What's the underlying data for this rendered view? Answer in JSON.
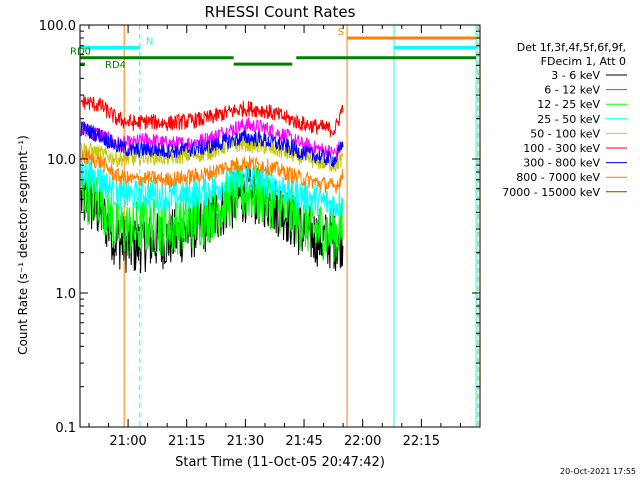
{
  "chart_data": {
    "type": "line",
    "title": "RHESSI Count Rates",
    "xlabel": "Start Time (11-Oct-05 20:47:42)",
    "ylabel": "Count Rate (s⁻¹ detector segment⁻¹)",
    "y_scale": "log",
    "ylim": [
      0.1,
      100.0
    ],
    "y_ticks": [
      {
        "value": 0.1,
        "label": "0.1"
      },
      {
        "value": 1.0,
        "label": "1.0"
      },
      {
        "value": 10.0,
        "label": "10.0"
      },
      {
        "value": 100.0,
        "label": "100.0"
      }
    ],
    "xlim": [
      "20:47:42",
      "22:30:00"
    ],
    "x_ticks": [
      "21:00",
      "21:15",
      "21:30",
      "21:45",
      "22:00",
      "22:15"
    ],
    "legend_header": [
      "Det 1f,3f,4f,5f,6f,9f,",
      "FDecim 1, Att 0"
    ],
    "legend_position": "right",
    "series": [
      {
        "name": "3 - 6 keV",
        "color": "#000000",
        "x": [
          "20:48",
          "20:53",
          "20:57",
          "21:01",
          "21:05",
          "21:10",
          "21:15",
          "21:20",
          "21:25",
          "21:30",
          "21:35",
          "21:40",
          "21:44",
          "21:48",
          "21:53",
          "21:55"
        ],
        "values": [
          5.0,
          4.0,
          2.5,
          2.2,
          2.4,
          2.5,
          2.8,
          3.3,
          4.5,
          5.5,
          5.0,
          4.0,
          3.0,
          2.6,
          2.4,
          2.6
        ]
      },
      {
        "name": "6 - 12 keV",
        "color": "#ff00ff",
        "x": [
          "20:48",
          "20:53",
          "20:57",
          "21:01",
          "21:05",
          "21:10",
          "21:15",
          "21:20",
          "21:25",
          "21:30",
          "21:35",
          "21:40",
          "21:44",
          "21:48",
          "21:53",
          "21:55"
        ],
        "values": [
          17,
          15,
          13,
          13,
          14,
          13,
          13,
          14,
          16,
          18,
          17,
          15,
          13,
          12,
          11,
          13
        ]
      },
      {
        "name": "12 - 25 keV",
        "color": "#00ff00",
        "x": [
          "20:48",
          "20:53",
          "20:57",
          "21:01",
          "21:05",
          "21:10",
          "21:15",
          "21:20",
          "21:25",
          "21:30",
          "21:35",
          "21:40",
          "21:44",
          "21:48",
          "21:53",
          "21:55"
        ],
        "values": [
          5.5,
          5.0,
          3.0,
          3.0,
          3.2,
          3.1,
          3.3,
          3.8,
          4.8,
          5.8,
          5.2,
          4.3,
          3.4,
          3.0,
          2.8,
          3.0
        ]
      },
      {
        "name": "25 - 50 keV",
        "color": "#00ffff",
        "x": [
          "20:48",
          "20:53",
          "20:57",
          "21:01",
          "21:05",
          "21:10",
          "21:15",
          "21:20",
          "21:25",
          "21:30",
          "21:35",
          "21:40",
          "21:44",
          "21:48",
          "21:53",
          "21:55"
        ],
        "values": [
          8,
          7,
          5.5,
          5.3,
          5.5,
          5.2,
          5.4,
          5.8,
          6.5,
          7.2,
          6.8,
          6.0,
          5.4,
          5.0,
          4.5,
          5.0
        ]
      },
      {
        "name": "50 - 100 keV",
        "color": "#c8c800",
        "x": [
          "20:48",
          "20:53",
          "20:57",
          "21:01",
          "21:05",
          "21:10",
          "21:15",
          "21:20",
          "21:25",
          "21:30",
          "21:35",
          "21:40",
          "21:44",
          "21:48",
          "21:53",
          "21:55"
        ],
        "values": [
          12,
          11,
          10,
          10,
          10.5,
          10.2,
          10.6,
          11,
          12.5,
          13,
          12.3,
          11.2,
          10.3,
          9.6,
          9.0,
          10
        ]
      },
      {
        "name": "100 - 300 keV",
        "color": "#ff0000",
        "x": [
          "20:48",
          "20:53",
          "20:57",
          "21:01",
          "21:05",
          "21:10",
          "21:15",
          "21:20",
          "21:25",
          "21:30",
          "21:35",
          "21:40",
          "21:44",
          "21:48",
          "21:53",
          "21:55"
        ],
        "values": [
          27,
          25,
          20,
          18.5,
          19,
          18.5,
          19,
          20,
          22,
          24,
          23,
          20.5,
          18.5,
          17.5,
          16.5,
          25
        ]
      },
      {
        "name": "300 - 800 keV",
        "color": "#0000ff",
        "x": [
          "20:48",
          "20:53",
          "20:57",
          "21:01",
          "21:05",
          "21:10",
          "21:15",
          "21:20",
          "21:25",
          "21:30",
          "21:35",
          "21:40",
          "21:44",
          "21:48",
          "21:53",
          "21:55"
        ],
        "values": [
          17,
          15,
          12.5,
          11.5,
          11.8,
          11.5,
          11.8,
          12.2,
          13.5,
          14.5,
          13.8,
          12.6,
          11.3,
          10.6,
          9.8,
          13
        ]
      },
      {
        "name": "800 - 7000 keV",
        "color": "#ff8000",
        "x": [
          "20:48",
          "20:53",
          "20:57",
          "21:01",
          "21:05",
          "21:10",
          "21:15",
          "21:20",
          "21:25",
          "21:30",
          "21:35",
          "21:40",
          "21:44",
          "21:48",
          "21:53",
          "21:55"
        ],
        "values": [
          10.5,
          9.5,
          7.5,
          7.0,
          7.2,
          7.0,
          7.3,
          7.7,
          8.7,
          9.4,
          8.9,
          8.0,
          7.2,
          6.7,
          6.2,
          7.5
        ]
      },
      {
        "name": "7000 - 15000 keV",
        "color": "#804000",
        "x": [],
        "values": []
      }
    ],
    "flag_bars": [
      {
        "label": "N",
        "color": "#00ffff",
        "value": 68,
        "label_color": "#00ffff",
        "segments": [
          [
            "20:47:42",
            "21:03"
          ],
          [
            "22:08",
            "22:29"
          ]
        ]
      },
      {
        "label": "RD0",
        "color": "#008000",
        "value": 57,
        "label_color": "#008000",
        "segments": [
          [
            "20:47:42",
            "21:27"
          ],
          [
            "21:43",
            "22:29"
          ]
        ]
      },
      {
        "label": "RD4",
        "color": "#008000",
        "value": 51,
        "label_color": "#008000",
        "segments": [
          [
            "20:47:42",
            "20:49"
          ],
          [
            "21:27",
            "21:42"
          ]
        ]
      },
      {
        "label": "S",
        "color": "#ff8000",
        "value": 80,
        "label_color": "#ff8000",
        "segments": [
          [
            "21:56",
            "22:29"
          ]
        ]
      }
    ],
    "vertical_lines": [
      {
        "time": "20:47:42",
        "color": "#00ffff",
        "dashed": false
      },
      {
        "time": "21:03",
        "color": "#00ffff",
        "dashed": true
      },
      {
        "time": "21:56",
        "color": "#ff8000",
        "dashed": false
      },
      {
        "time": "22:08",
        "color": "#00ffff",
        "dashed": false
      },
      {
        "time": "22:29",
        "color": "#00ffff",
        "dashed": false
      },
      {
        "time": "22:29:30",
        "color": "#ff8000",
        "dashed": true
      },
      {
        "time": "20:59",
        "color": "#ff8000",
        "dashed": false
      }
    ],
    "grid": false
  },
  "footer": {
    "timestamp": "20-Oct-2021 17:55"
  }
}
